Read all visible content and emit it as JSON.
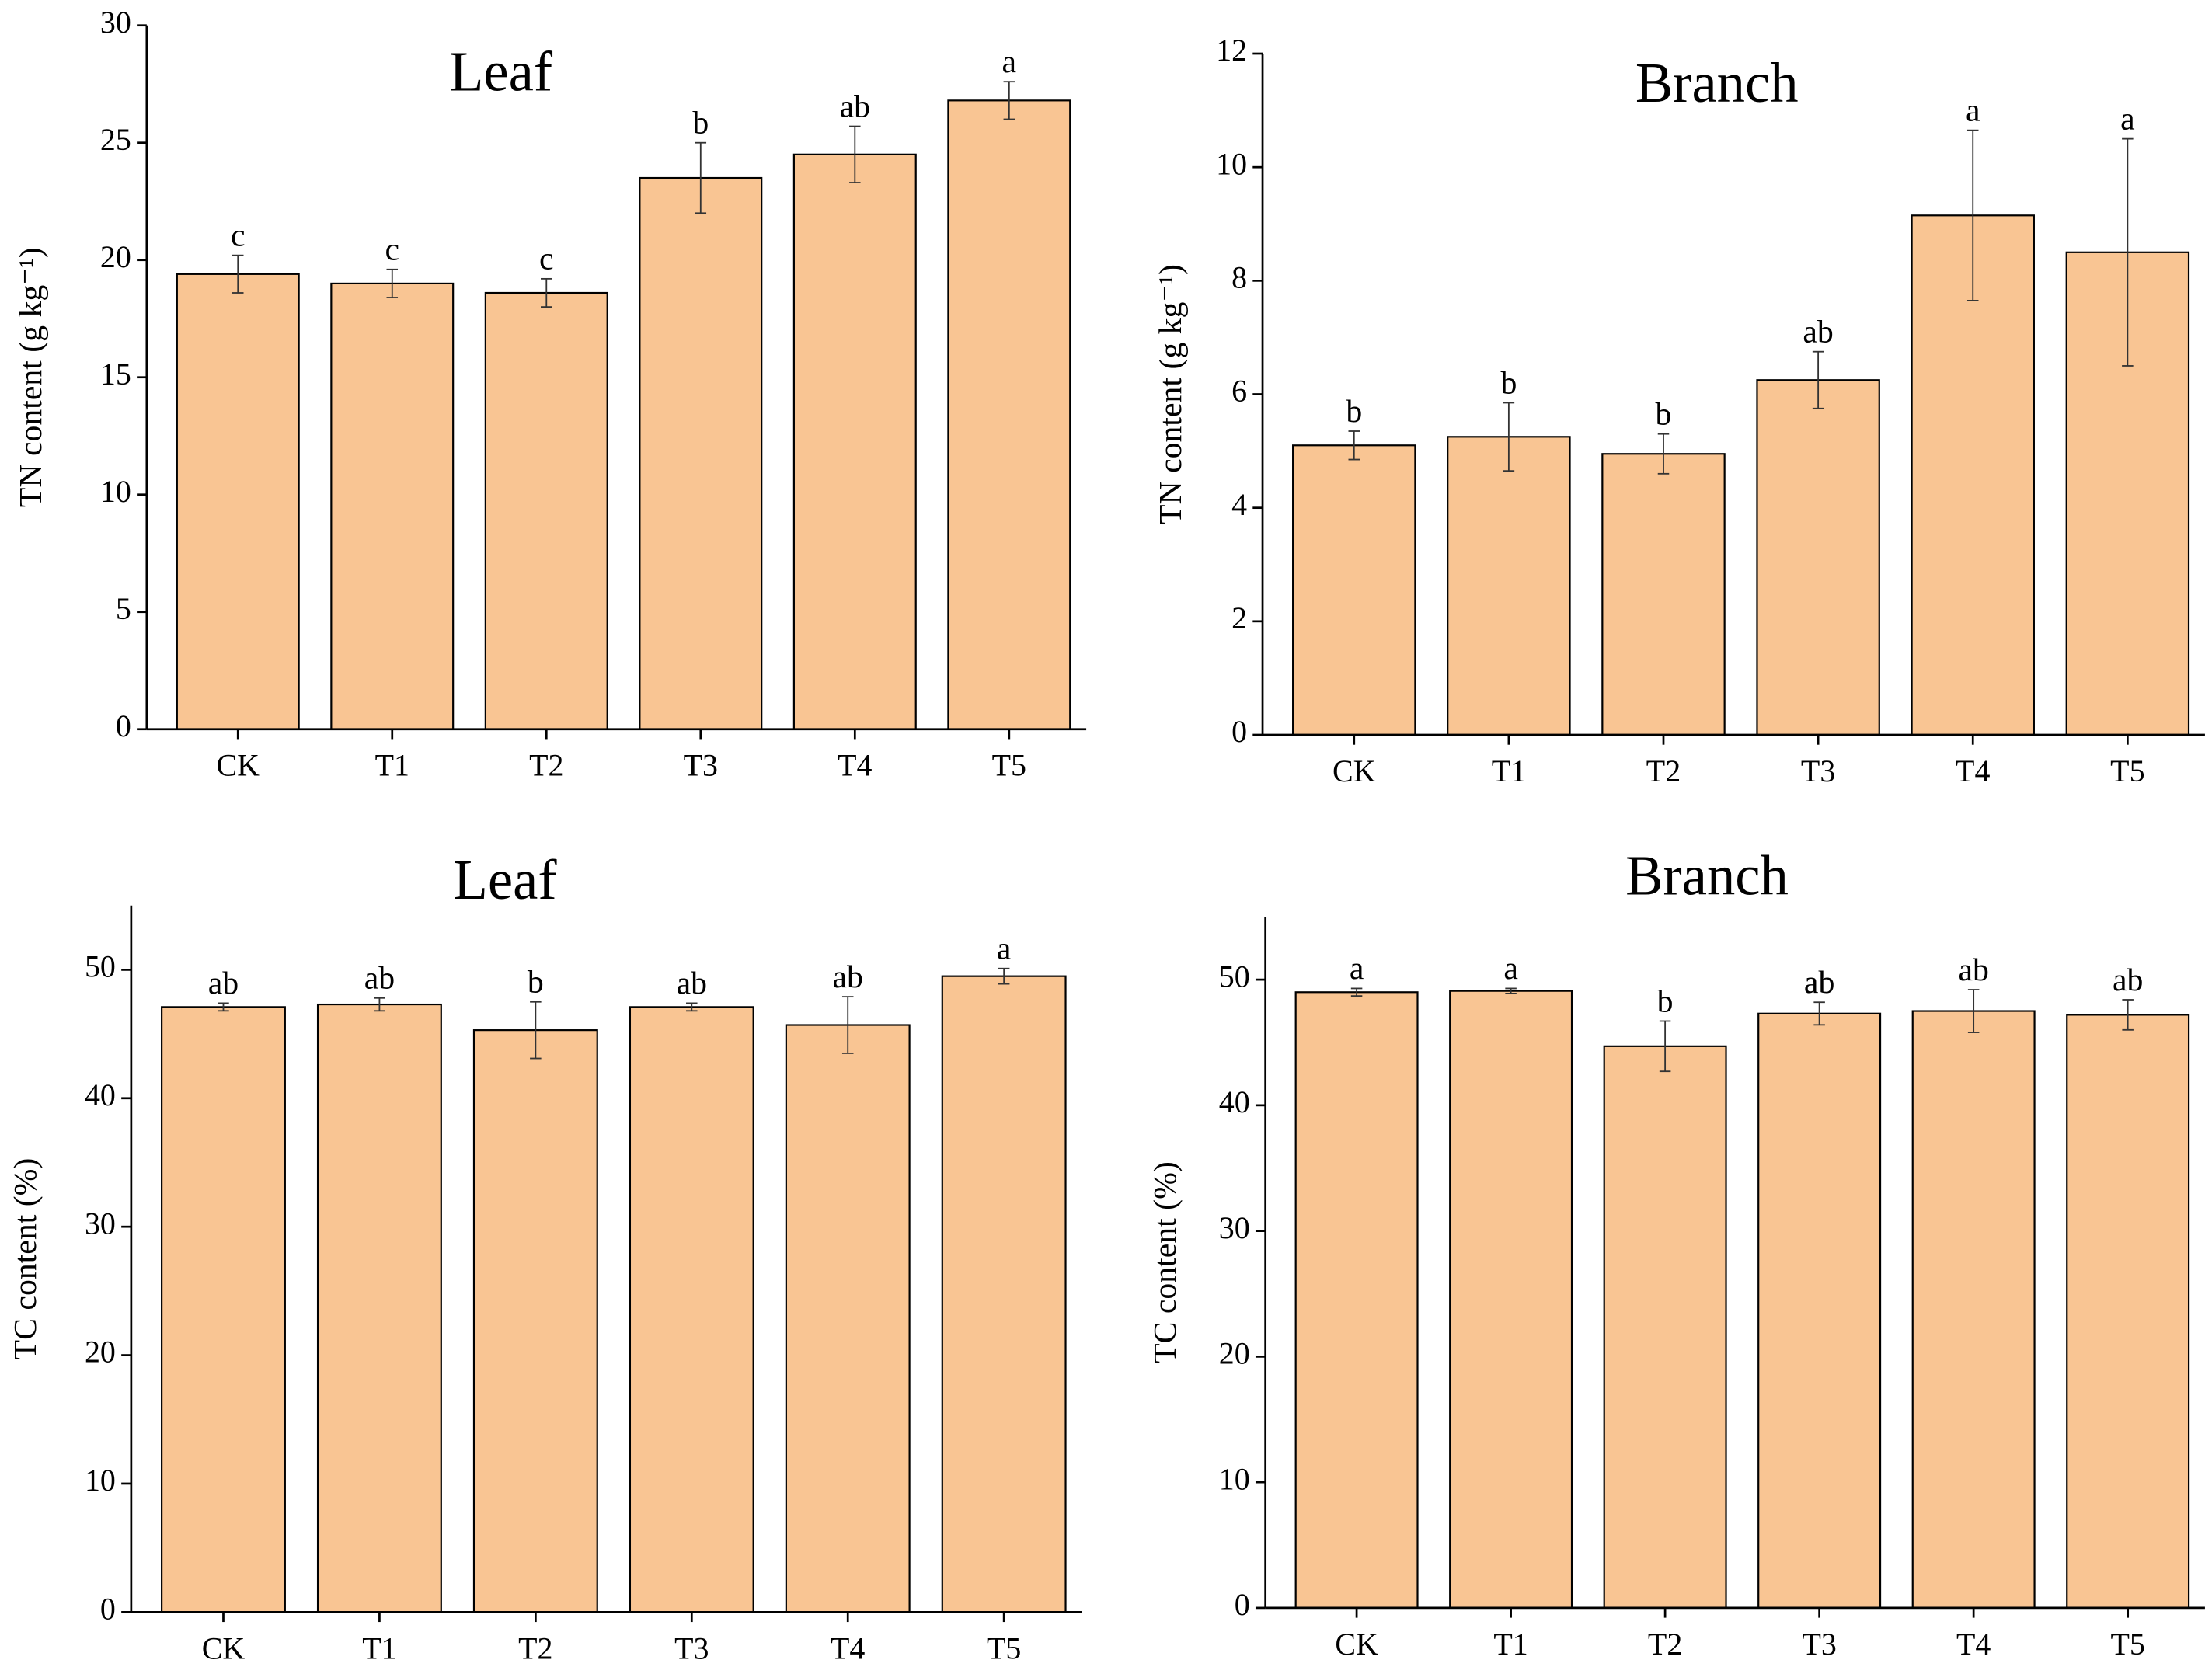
{
  "chart_data": [
    {
      "type": "bar",
      "title": "Leaf",
      "y_label": "TN content (g kg⁻¹)",
      "categories": [
        "CK",
        "T1",
        "T2",
        "T3",
        "T4",
        "T5"
      ],
      "values": [
        19.4,
        19.0,
        18.6,
        23.5,
        24.5,
        26.8
      ],
      "errors": [
        0.8,
        0.6,
        0.6,
        1.5,
        1.2,
        0.8
      ],
      "letters": [
        "c",
        "c",
        "c",
        "b",
        "ab",
        "a"
      ],
      "color": "#f9c593",
      "ylim": [
        0,
        30
      ],
      "yticks": [
        0,
        5,
        10,
        15,
        20,
        25,
        30
      ]
    },
    {
      "type": "bar",
      "title": "Branch",
      "y_label": "TN content (g kg⁻¹)",
      "categories": [
        "CK",
        "T1",
        "T2",
        "T3",
        "T4",
        "T5"
      ],
      "values": [
        5.1,
        5.25,
        4.95,
        6.25,
        9.15,
        8.5
      ],
      "errors": [
        0.25,
        0.6,
        0.35,
        0.5,
        1.5,
        2.0
      ],
      "letters": [
        "b",
        "b",
        "b",
        "ab",
        "a",
        "a"
      ],
      "color": "#f9c593",
      "ylim": [
        0,
        12
      ],
      "yticks": [
        0,
        2,
        4,
        6,
        8,
        10,
        12
      ]
    },
    {
      "type": "bar",
      "title": "Leaf",
      "y_label": "TC content (%)",
      "categories": [
        "CK",
        "T1",
        "T2",
        "T3",
        "T4",
        "T5"
      ],
      "values": [
        47.1,
        47.3,
        45.3,
        47.1,
        45.7,
        49.5
      ],
      "errors": [
        0.3,
        0.5,
        2.2,
        0.3,
        2.2,
        0.6
      ],
      "letters": [
        "ab",
        "ab",
        "b",
        "ab",
        "ab",
        "a"
      ],
      "color": "#f9c593",
      "ylim": [
        0,
        55
      ],
      "yticks": [
        0,
        10,
        20,
        30,
        40,
        50
      ]
    },
    {
      "type": "bar",
      "title": "Branch",
      "y_label": "TC content (%)",
      "categories": [
        "CK",
        "T1",
        "T2",
        "T3",
        "T4",
        "T5"
      ],
      "values": [
        49.0,
        49.1,
        44.7,
        47.3,
        47.5,
        47.2
      ],
      "errors": [
        0.3,
        0.2,
        2.0,
        0.9,
        1.7,
        1.2
      ],
      "letters": [
        "a",
        "a",
        "b",
        "ab",
        "ab",
        "ab"
      ],
      "color": "#f9c593",
      "ylim": [
        0,
        55
      ],
      "yticks": [
        0,
        10,
        20,
        30,
        40,
        50
      ]
    }
  ]
}
